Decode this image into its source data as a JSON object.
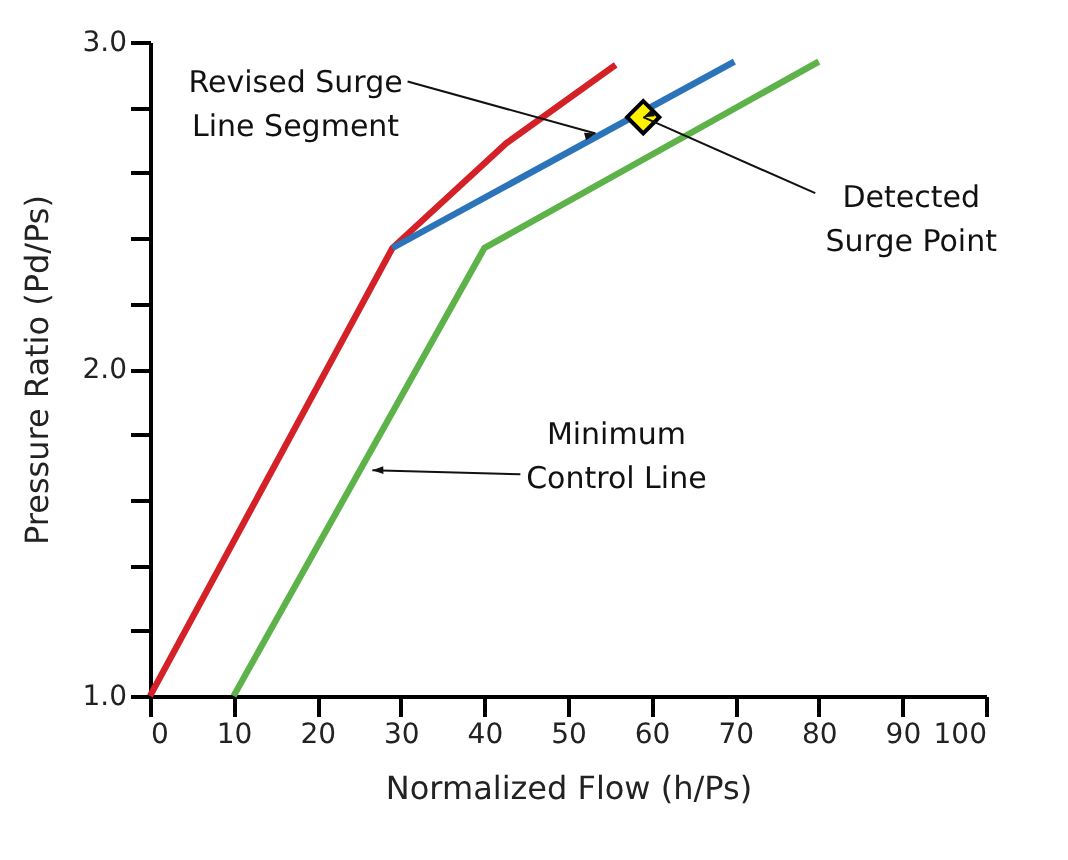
{
  "chart_data": {
    "type": "line",
    "xlabel": "Normalized Flow (h/Ps)",
    "ylabel": "Pressure Ratio (Pd/Ps)",
    "xlim": [
      0,
      100
    ],
    "xticks": [
      0,
      10,
      20,
      30,
      40,
      50,
      60,
      70,
      80,
      90,
      100
    ],
    "ylim": [
      1,
      3
    ],
    "yticks": [
      {
        "value": 1,
        "label": "1.0"
      },
      {
        "value": 1.2,
        "label": null
      },
      {
        "value": 1.4,
        "label": null
      },
      {
        "value": 1.6,
        "label": null
      },
      {
        "value": 1.8,
        "label": null
      },
      {
        "value": 2,
        "label": "2.0"
      },
      {
        "value": 2.2,
        "label": null
      },
      {
        "value": 2.4,
        "label": null
      },
      {
        "value": 2.6,
        "label": null
      },
      {
        "value": 2.8,
        "label": null
      },
      {
        "value": 3,
        "label": "3.0"
      }
    ],
    "grid": false,
    "series": [
      {
        "color": "#d42027",
        "x": [
          0,
          29,
          42.6,
          55.7
        ],
        "values": [
          1.0,
          2.37,
          2.69,
          2.93
        ]
      },
      {
        "color": "#2b74b9",
        "x": [
          29,
          69.9
        ],
        "values": [
          2.37,
          2.94
        ]
      },
      {
        "color": "#5db34a",
        "x": [
          10,
          40,
          80
        ],
        "values": [
          1.0,
          2.37,
          2.94
        ]
      },
      {
        "type": "scatter",
        "marker": "diamond",
        "color": "#fff200",
        "x": [
          59
        ],
        "values": [
          2.77
        ]
      }
    ],
    "annotations": [
      {
        "text": "Revised Surge Line Segment",
        "x": 53.3,
        "y": 2.72
      },
      {
        "text": "Detected Surge Point",
        "x": 59,
        "y": 2.77
      },
      {
        "text": "Minimum Control Line",
        "x": 26.6,
        "y": 1.69
      }
    ]
  }
}
